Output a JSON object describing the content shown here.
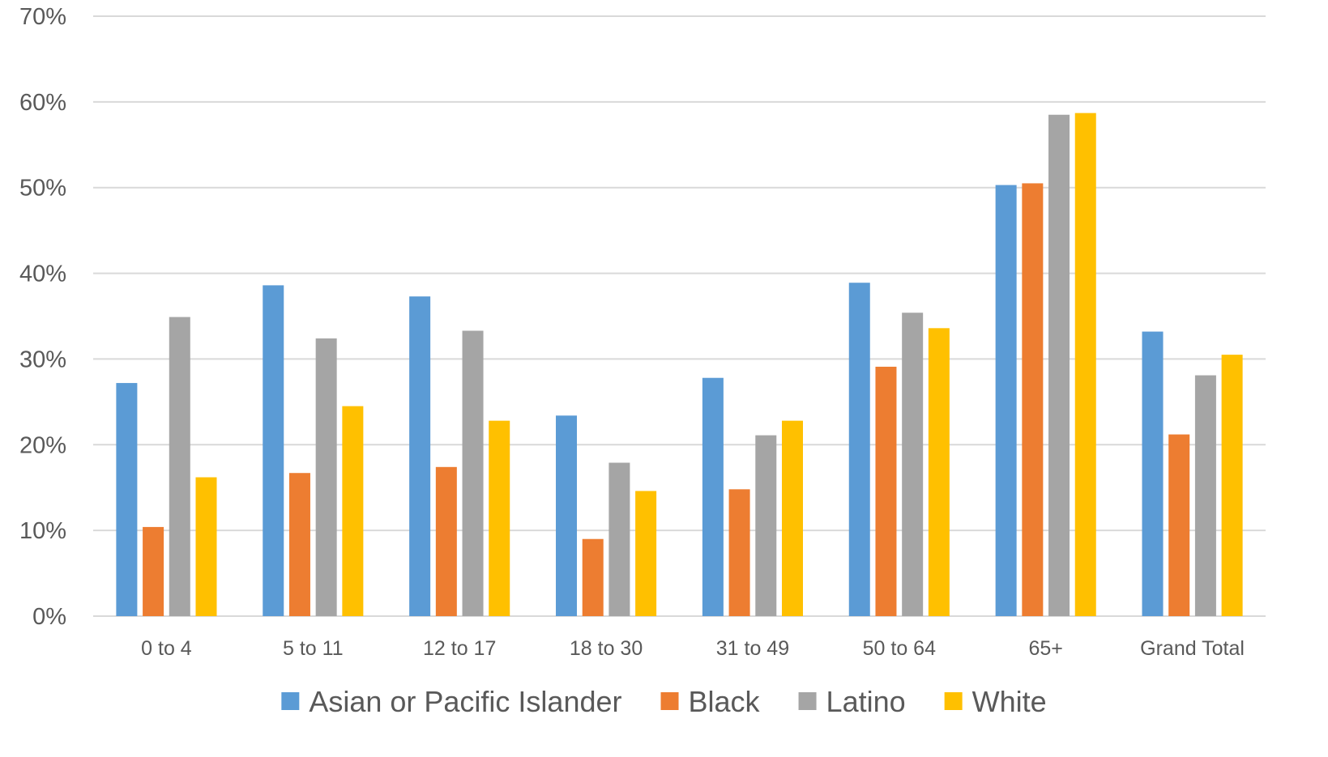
{
  "chart_data": {
    "type": "bar",
    "title": "",
    "xlabel": "",
    "ylabel": "",
    "ylim": [
      0,
      70
    ],
    "y_tick_step": 10,
    "y_tick_format": "percent",
    "grid": true,
    "legend_position": "bottom",
    "categories": [
      "0 to 4",
      "5 to 11",
      "12 to 17",
      "18 to 30",
      "31 to 49",
      "50 to 64",
      "65+",
      "Grand Total"
    ],
    "series": [
      {
        "name": "Asian or Pacific Islander",
        "color": "#5b9bd5",
        "values": [
          27.2,
          38.6,
          37.3,
          23.4,
          27.8,
          38.9,
          50.3,
          33.2
        ]
      },
      {
        "name": "Black",
        "color": "#ed7d31",
        "values": [
          10.4,
          16.7,
          17.4,
          9.0,
          14.8,
          29.1,
          50.5,
          21.2
        ]
      },
      {
        "name": "Latino",
        "color": "#a5a5a5",
        "values": [
          34.9,
          32.4,
          33.3,
          17.9,
          21.1,
          35.4,
          58.5,
          28.1
        ]
      },
      {
        "name": "White",
        "color": "#ffc000",
        "values": [
          16.2,
          24.5,
          22.8,
          14.6,
          22.8,
          33.6,
          58.7,
          30.5
        ]
      }
    ]
  }
}
